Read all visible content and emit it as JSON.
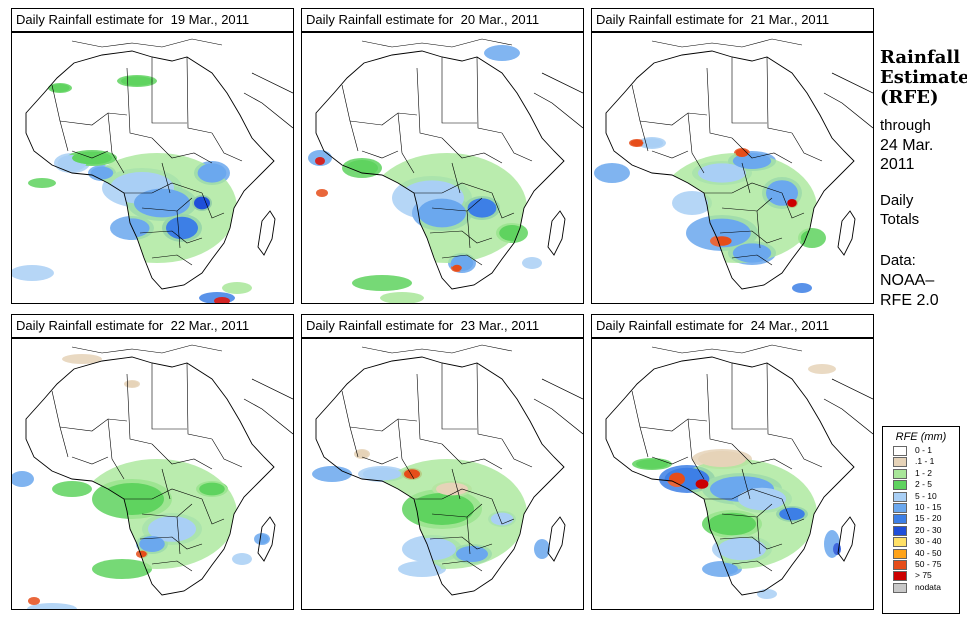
{
  "panels": [
    {
      "title": "Daily Rainfall estimate for  19 Mar., 2011"
    },
    {
      "title": "Daily Rainfall estimate for  20 Mar., 2011"
    },
    {
      "title": "Daily Rainfall estimate for  21 Mar., 2011"
    },
    {
      "title": "Daily Rainfall estimate for  22 Mar., 2011"
    },
    {
      "title": "Daily Rainfall estimate for  23 Mar., 2011"
    },
    {
      "title": "Daily Rainfall estimate for  24 Mar., 2011"
    }
  ],
  "side": {
    "title_line1": "Rainfall",
    "title_line2": "Estimate",
    "title_line3": "(RFE)",
    "through": "through",
    "date_line1": "24 Mar.",
    "date_line2": "2011",
    "totals_line1": "Daily",
    "totals_line2": "Totals",
    "data_line1": "Data:",
    "data_line2": "NOAA–",
    "data_line3": "RFE 2.0"
  },
  "legend": {
    "title": "RFE (mm)",
    "items": [
      {
        "label": "0 - 1",
        "color": "#ffffff"
      },
      {
        "label": ".1 - 1",
        "color": "#e6d3b8"
      },
      {
        "label": "1 - 2",
        "color": "#a9e79a"
      },
      {
        "label": "2 - 5",
        "color": "#5fd35f"
      },
      {
        "label": "5 - 10",
        "color": "#a9cff5"
      },
      {
        "label": "10 - 15",
        "color": "#6ba8ee"
      },
      {
        "label": "15 - 20",
        "color": "#3d7fe6"
      },
      {
        "label": "20 - 30",
        "color": "#1f4fd9"
      },
      {
        "label": "30 - 40",
        "color": "#ffe066"
      },
      {
        "label": "40 - 50",
        "color": "#ffa31a"
      },
      {
        "label": "50 - 75",
        "color": "#e64d1a"
      },
      {
        "label": "> 75",
        "color": "#cc0000"
      },
      {
        "label": "nodata",
        "color": "#c8c8c8"
      }
    ]
  }
}
